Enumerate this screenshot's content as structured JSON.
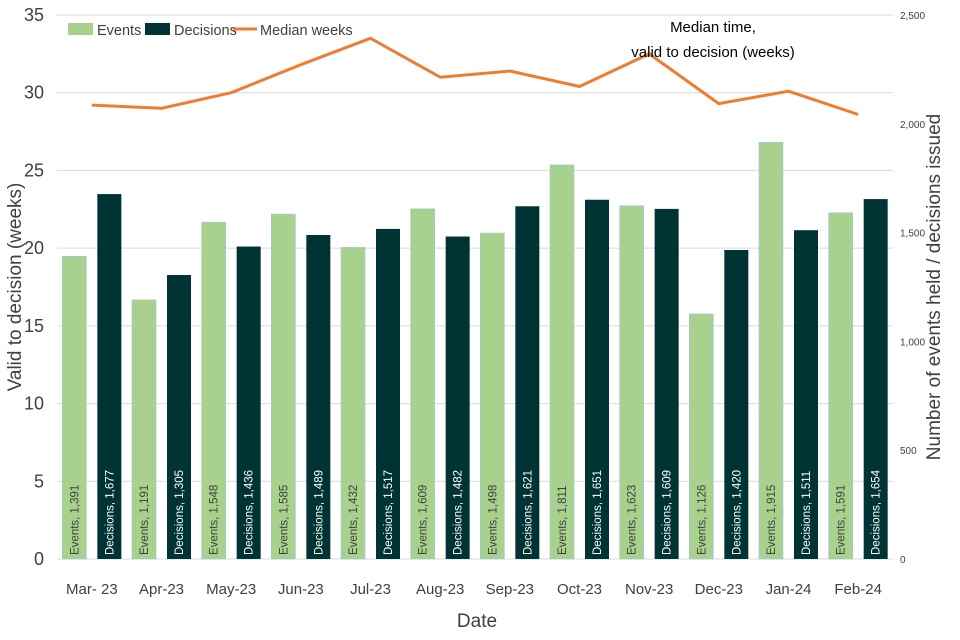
{
  "chart_data": {
    "type": "bar",
    "categories": [
      "Mar- 23",
      "Apr-23",
      "May-23",
      "Jun-23",
      "Jul-23",
      "Aug-23",
      "Sep-23",
      "Oct-23",
      "Nov-23",
      "Dec-23",
      "Jan-24",
      "Feb-24"
    ],
    "series": [
      {
        "name": "Events",
        "axis": "right",
        "color": "#a9d18e",
        "values": [
          1391,
          1191,
          1548,
          1585,
          1432,
          1609,
          1498,
          1811,
          1623,
          1126,
          1915,
          1591
        ],
        "data_labels": [
          "Events, 1,391",
          "Events, 1,191",
          "Events, 1,548",
          "Events, 1,585",
          "Events, 1,432",
          "Events, 1,609",
          "Events, 1,498",
          "Events, 1,811",
          "Events, 1,623",
          "Events, 1,126",
          "Events, 1,915",
          "Events, 1,591"
        ]
      },
      {
        "name": "Decisions",
        "axis": "right",
        "color": "#003333",
        "values": [
          1677,
          1305,
          1436,
          1489,
          1517,
          1482,
          1621,
          1651,
          1609,
          1420,
          1511,
          1654
        ],
        "data_labels": [
          "Decisions, 1,677",
          "Decisions, 1,305",
          "Decisions, 1,436",
          "Decisions, 1,489",
          "Decisions, 1,517",
          "Decisions, 1,482",
          "Decisions, 1,621",
          "Decisions, 1,651",
          "Decisions, 1,609",
          "Decisions, 1,420",
          "Decisions, 1,511",
          "Decisions, 1,654"
        ]
      },
      {
        "name": "Median weeks",
        "type": "line",
        "axis": "left",
        "color": "#ed7d31",
        "values": [
          29.2,
          29.0,
          30.0,
          31.8,
          33.5,
          31.0,
          31.4,
          30.4,
          32.5,
          29.3,
          30.1,
          28.6
        ]
      }
    ],
    "xlabel": "Date",
    "ylabel_left": "Valid to decision (weeks)",
    "ylabel_right": "Number of events held / decisions issued",
    "ylim_left": [
      0,
      35
    ],
    "ylim_right": [
      0,
      2500
    ],
    "yticks_left": [
      "0",
      "5",
      "10",
      "15",
      "20",
      "25",
      "30",
      "35"
    ],
    "yticks_right": [
      "0",
      "500",
      "1,000",
      "1,500",
      "2,000",
      "2,500"
    ],
    "annotation": [
      "Median time,",
      "valid to decision (weeks)"
    ],
    "legend": [
      "Events",
      "Decisions",
      "Median weeks"
    ],
    "legend_position": "top-left",
    "grid": true,
    "gridline_color": "#d9d9d9"
  }
}
